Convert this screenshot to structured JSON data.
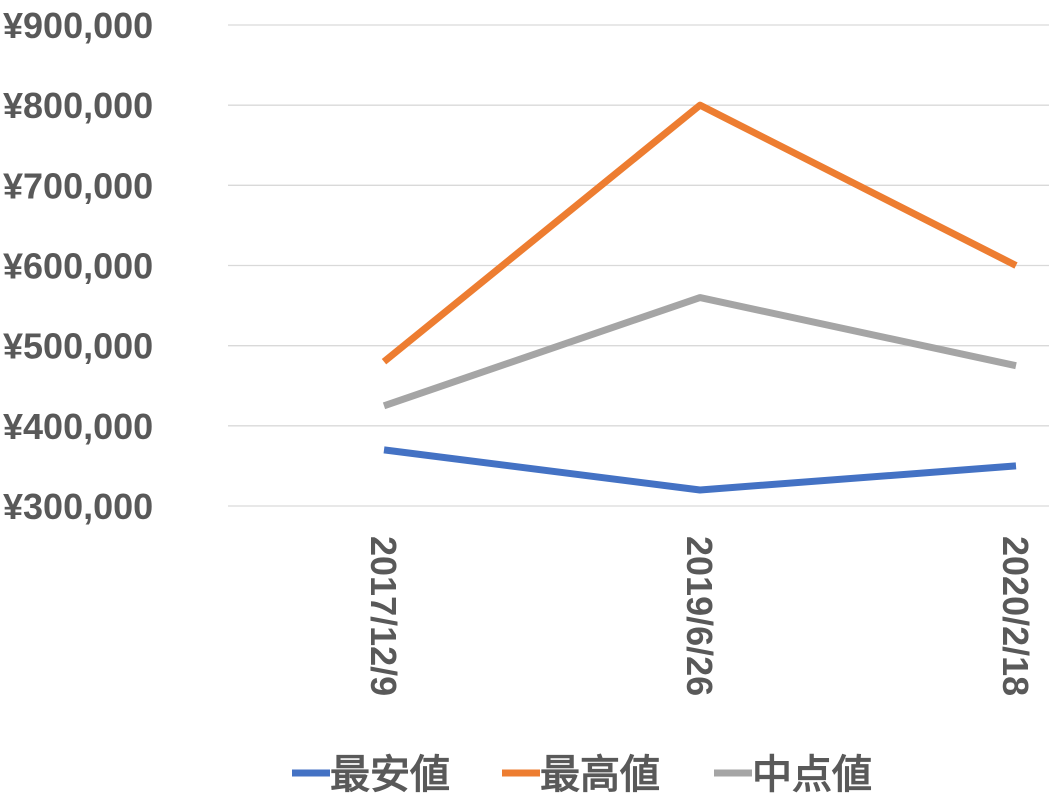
{
  "chart_data": {
    "type": "line",
    "categories": [
      "2017/12/9",
      "2019/6/26",
      "2020/2/18"
    ],
    "series": [
      {
        "name": "最安値",
        "values": [
          370000,
          320000,
          350000
        ],
        "color": "#4472C4"
      },
      {
        "name": "最高値",
        "values": [
          480000,
          800000,
          600000
        ],
        "color": "#ED7D31"
      },
      {
        "name": "中点値",
        "values": [
          425000,
          560000,
          475000
        ],
        "color": "#A5A5A5"
      }
    ],
    "y_ticks": [
      "¥300,000",
      "¥400,000",
      "¥500,000",
      "¥600,000",
      "¥700,000",
      "¥800,000",
      "¥900,000"
    ],
    "ylim": [
      300000,
      900000
    ],
    "grid": true,
    "legend_position": "bottom"
  }
}
